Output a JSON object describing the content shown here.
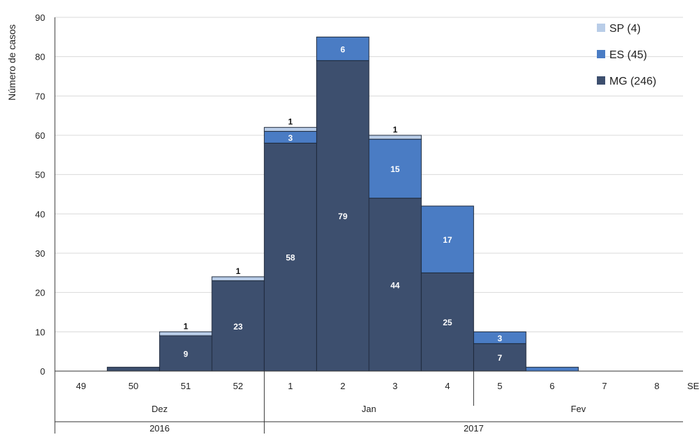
{
  "chart_data": {
    "type": "bar",
    "stacked": true,
    "ylabel": "Número de casos",
    "xlabel": "SE",
    "ylim": [
      0,
      90
    ],
    "yticks": [
      0,
      10,
      20,
      30,
      40,
      50,
      60,
      70,
      80,
      90
    ],
    "grid": true,
    "legend_position": "top-right",
    "categories": [
      "49",
      "50",
      "51",
      "52",
      "1",
      "2",
      "3",
      "4",
      "5",
      "6",
      "7",
      "8"
    ],
    "months": [
      {
        "label": "Dez",
        "span": 4
      },
      {
        "label": "Jan",
        "span": 4
      },
      {
        "label": "Fev",
        "span": 4
      }
    ],
    "years": [
      {
        "label": "2016",
        "span": 4
      },
      {
        "label": "2017",
        "span": 8
      }
    ],
    "series": [
      {
        "name": "MG (246)",
        "color": "#3d4f6e",
        "values": [
          0,
          1,
          9,
          23,
          58,
          79,
          44,
          25,
          7,
          0,
          0,
          0
        ],
        "labels": [
          null,
          null,
          "9",
          "23",
          "58",
          "79",
          "44",
          "25",
          "7",
          null,
          null,
          null
        ]
      },
      {
        "name": "ES (45)",
        "color": "#4a7cc4",
        "values": [
          0,
          0,
          0,
          0,
          3,
          6,
          15,
          17,
          3,
          1,
          0,
          0
        ],
        "labels": [
          null,
          null,
          null,
          null,
          "3",
          "6",
          "15",
          "17",
          "3",
          null,
          null,
          null
        ]
      },
      {
        "name": "SP (4)",
        "color": "#b9cde8",
        "values": [
          0,
          0,
          1,
          1,
          1,
          0,
          1,
          0,
          0,
          0,
          0,
          0
        ],
        "labels": [
          null,
          null,
          "1",
          "1",
          "1",
          null,
          "1",
          null,
          null,
          null,
          null,
          null
        ]
      }
    ]
  }
}
